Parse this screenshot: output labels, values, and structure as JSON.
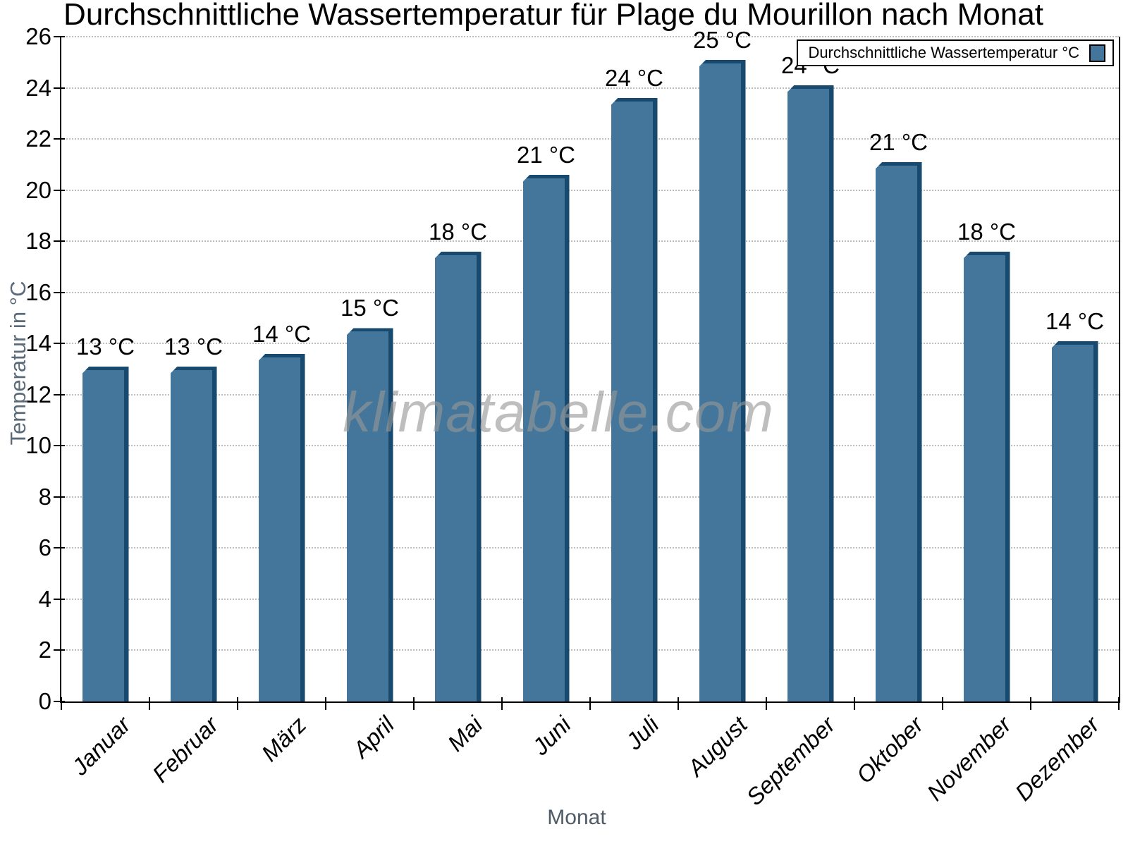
{
  "watermark": "klimatabelle.com",
  "chart_data": {
    "type": "bar",
    "title": "Durchschnittliche Wassertemperatur für Plage du Mourillon nach Monat",
    "xlabel": "Monat",
    "ylabel": "Temperatur in °C",
    "categories": [
      "Januar",
      "Februar",
      "März",
      "April",
      "Mai",
      "Juni",
      "Juli",
      "August",
      "September",
      "Oktober",
      "November",
      "Dezember"
    ],
    "series": [
      {
        "name": "Durchschnittliche Wassertemperatur °C",
        "values": [
          13.1,
          13.1,
          13.6,
          14.6,
          17.6,
          20.6,
          23.6,
          25.1,
          24.1,
          21.1,
          17.6,
          14.1
        ],
        "value_labels": [
          "13 °C",
          "13 °C",
          "14 °C",
          "15 °C",
          "18 °C",
          "21 °C",
          "24 °C",
          "25 °C",
          "24 °C",
          "21 °C",
          "18 °C",
          "14 °C"
        ]
      }
    ],
    "ylim": [
      0,
      26
    ],
    "ytick_step": 2,
    "grid": "horizontal-dotted",
    "legend_position": "top-right",
    "colors": {
      "bar_face": "#43769a",
      "bar_edge": "#174a6e",
      "gridline": "#bdbdbd",
      "axis": "#000000",
      "axis_title": "#5a6a79",
      "watermark": "#969696"
    }
  }
}
